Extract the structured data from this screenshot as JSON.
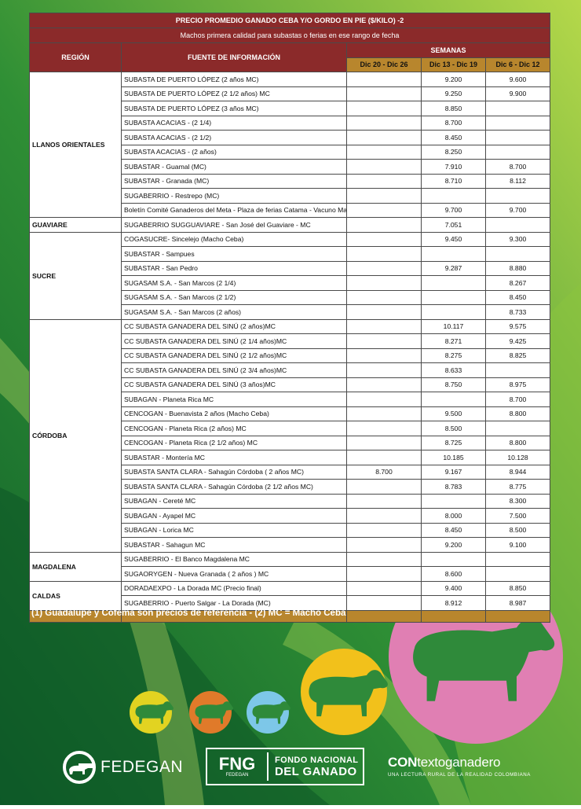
{
  "table": {
    "title": "PRECIO PROMEDIO GANADO CEBA Y/O GORDO EN PIE ($/KILO) -2",
    "subtitle": "Machos primera calidad para subastas o ferias en ese rango de fecha",
    "col_region": "REGIÓN",
    "col_source": "FUENTE DE INFORMACIÓN",
    "col_weeks": "SEMANAS",
    "weeks": [
      "Dic 20 - Dic 26",
      "Dic 13 - Dic 19",
      "Dic 6 - Dic 12"
    ],
    "regions": [
      {
        "name": "LLANOS ORIENTALES",
        "rows": [
          {
            "source": "SUBASTA DE PUERTO LÓPEZ (2 años MC)",
            "w1": "",
            "w2": "9.200",
            "w3": "9.600"
          },
          {
            "source": "SUBASTA DE PUERTO LÓPEZ (2 1/2 años) MC",
            "w1": "",
            "w2": "9.250",
            "w3": "9.900"
          },
          {
            "source": "SUBASTA DE PUERTO LÓPEZ (3 años MC)",
            "w1": "",
            "w2": "8.850",
            "w3": ""
          },
          {
            "source": "SUBASTA ACACIAS - (2 1/4)",
            "w1": "",
            "w2": "8.700",
            "w3": ""
          },
          {
            "source": "SUBASTA ACACIAS - (2 1/2)",
            "w1": "",
            "w2": "8.450",
            "w3": ""
          },
          {
            "source": "SUBASTA ACACIAS - (2 años)",
            "w1": "",
            "w2": "8.250",
            "w3": ""
          },
          {
            "source": "SUBASTAR - Guamal (MC)",
            "w1": "",
            "w2": "7.910",
            "w3": "8.700"
          },
          {
            "source": "SUBASTAR - Granada (MC)",
            "w1": "",
            "w2": "8.710",
            "w3": "8.112"
          },
          {
            "source": "SUGABERRIO - Restrepo (MC)",
            "w1": "",
            "w2": "",
            "w3": ""
          },
          {
            "source": "Boletín Comité Ganaderos del Meta - Plaza de ferias Catama - Vacuno Macho",
            "w1": "",
            "w2": "9.700",
            "w3": "9.700"
          }
        ]
      },
      {
        "name": "GUAVIARE",
        "rows": [
          {
            "source": "SUGABERRIO SUGGUAVIARE - San José del Guaviare - MC",
            "w1": "",
            "w2": "7.051",
            "w3": ""
          }
        ]
      },
      {
        "name": "SUCRE",
        "rows": [
          {
            "source": "COGASUCRE- Sincelejo (Macho Ceba)",
            "w1": "",
            "w2": "9.450",
            "w3": "9.300"
          },
          {
            "source": "SUBASTAR - Sampues",
            "w1": "",
            "w2": "",
            "w3": ""
          },
          {
            "source": "SUBASTAR - San Pedro",
            "w1": "",
            "w2": "9.287",
            "w3": "8.880"
          },
          {
            "source": "SUGASAM S.A. - San Marcos (2 1/4)",
            "w1": "",
            "w2": "",
            "w3": "8.267"
          },
          {
            "source": "SUGASAM S.A. - San Marcos (2 1/2)",
            "w1": "",
            "w2": "",
            "w3": "8.450"
          },
          {
            "source": "SUGASAM S.A. - San Marcos (2 años)",
            "w1": "",
            "w2": "",
            "w3": "8.733"
          }
        ]
      },
      {
        "name": "CÓRDOBA",
        "rows": [
          {
            "source": "CC SUBASTA GANADERA DEL SINÚ (2 años)MC",
            "w1": "",
            "w2": "10.117",
            "w3": "9.575"
          },
          {
            "source": "CC SUBASTA GANADERA DEL SINÚ (2 1/4 años)MC",
            "w1": "",
            "w2": "8.271",
            "w3": "9.425"
          },
          {
            "source": "CC SUBASTA GANADERA DEL SINÚ (2 1/2 años)MC",
            "w1": "",
            "w2": "8.275",
            "w3": "8.825"
          },
          {
            "source": "CC SUBASTA GANADERA DEL SINÚ (2 3/4 años)MC",
            "w1": "",
            "w2": "8.633",
            "w3": ""
          },
          {
            "source": "CC SUBASTA GANADERA DEL SINÚ (3 años)MC",
            "w1": "",
            "w2": "8.750",
            "w3": "8.975"
          },
          {
            "source": "SUBAGAN - Planeta Rica MC",
            "w1": "",
            "w2": "",
            "w3": "8.700"
          },
          {
            "source": "CENCOGAN - Buenavista 2 años (Macho Ceba)",
            "w1": "",
            "w2": "9.500",
            "w3": "8.800"
          },
          {
            "source": "CENCOGAN - Planeta Rica (2 años) MC",
            "w1": "",
            "w2": "8.500",
            "w3": ""
          },
          {
            "source": "CENCOGAN - Planeta Rica (2 1/2 años) MC",
            "w1": "",
            "w2": "8.725",
            "w3": "8.800"
          },
          {
            "source": "SUBASTAR - Montería MC",
            "w1": "",
            "w2": "10.185",
            "w3": "10.128"
          },
          {
            "source": "SUBASTA SANTA CLARA - Sahagún Córdoba ( 2 años MC)",
            "w1": "8.700",
            "w2": "9.167",
            "w3": "8.944"
          },
          {
            "source": "SUBASTA SANTA CLARA - Sahagún Córdoba (2 1/2 años MC)",
            "w1": "",
            "w2": "8.783",
            "w3": "8.775"
          },
          {
            "source": "SUBAGAN - Cereté MC",
            "w1": "",
            "w2": "",
            "w3": "8.300"
          },
          {
            "source": "SUBAGAN - Ayapel MC",
            "w1": "",
            "w2": "8.000",
            "w3": "7.500"
          },
          {
            "source": "SUBAGAN - Lorica MC",
            "w1": "",
            "w2": "8.450",
            "w3": "8.500"
          },
          {
            "source": "SUBASTAR - Sahagun MC",
            "w1": "",
            "w2": "9.200",
            "w3": "9.100"
          }
        ]
      },
      {
        "name": "MAGDALENA",
        "rows": [
          {
            "source": "SUGABERRIO - El Banco Magdalena MC",
            "w1": "",
            "w2": "",
            "w3": ""
          },
          {
            "source": "SUGAORYGEN - Nueva Granada ( 2 años ) MC",
            "w1": "",
            "w2": "8.600",
            "w3": ""
          }
        ]
      },
      {
        "name": "CALDAS",
        "rows": [
          {
            "source": "DORADAEXPO - La Dorada MC (Precio final)",
            "w1": "",
            "w2": "9.400",
            "w3": "8.850"
          },
          {
            "source": "SUGABERRIO - Puerto Salgar - La Dorada (MC)",
            "w1": "",
            "w2": "8.912",
            "w3": "8.987"
          }
        ]
      }
    ]
  },
  "note": "(1) Guadalupe y Cofema son precios de referencia  -  (2) MC = Macho Ceba",
  "logos": {
    "fedegan": "FEDEGAN",
    "fng_mark": "FNG",
    "fng_small": "FEDEGAN",
    "fng_line1": "FONDO NACIONAL",
    "fng_line2": "DEL GANADO",
    "contexto_bold": "CON",
    "contexto_rest": "textoganadero",
    "contexto_tag": "UNA LECTURA RURAL DE LA REALIDAD COLOMBIANA"
  },
  "colors": {
    "header": "#8b2a2a",
    "weeks_bar": "#b8862d",
    "green_dark": "#1f7a2f",
    "green_light": "#a6cf3c",
    "circle_yellow": "#e2d321",
    "circle_orange": "#e07a2a",
    "circle_blue": "#7dc7e8",
    "circle_gold": "#f2c11b",
    "circle_pink": "#e07fb3"
  }
}
